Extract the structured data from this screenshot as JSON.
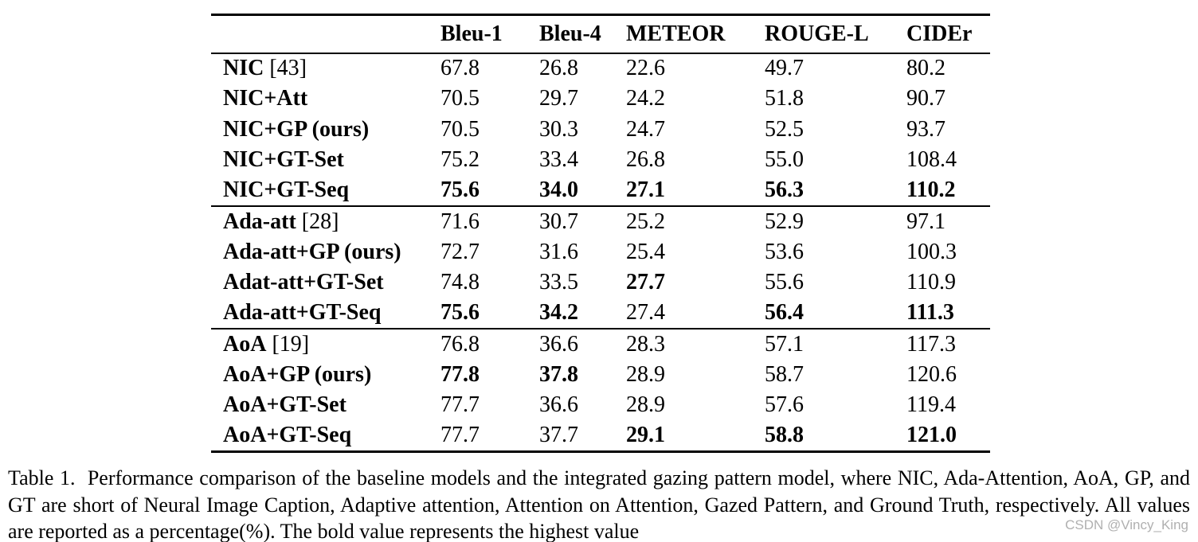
{
  "colors": {
    "text": "#000000",
    "background": "#ffffff",
    "watermark_gray": "#b0b0b0",
    "rule": "#000000"
  },
  "table": {
    "columns": [
      "",
      "Bleu-1",
      "Bleu-4",
      "METEOR",
      "ROUGE-L",
      "CIDEr"
    ],
    "groups": [
      {
        "rows": [
          {
            "label": "NIC",
            "ref": "[43]",
            "values": [
              {
                "text": "67.8",
                "bold": false
              },
              {
                "text": "26.8",
                "bold": false
              },
              {
                "text": "22.6",
                "bold": false
              },
              {
                "text": "49.7",
                "bold": false
              },
              {
                "text": "80.2",
                "bold": false
              }
            ]
          },
          {
            "label": "NIC+Att",
            "ref": "",
            "values": [
              {
                "text": "70.5",
                "bold": false
              },
              {
                "text": "29.7",
                "bold": false
              },
              {
                "text": "24.2",
                "bold": false
              },
              {
                "text": "51.8",
                "bold": false
              },
              {
                "text": "90.7",
                "bold": false
              }
            ]
          },
          {
            "label": "NIC+GP (ours)",
            "ref": "",
            "values": [
              {
                "text": "70.5",
                "bold": false
              },
              {
                "text": "30.3",
                "bold": false
              },
              {
                "text": "24.7",
                "bold": false
              },
              {
                "text": "52.5",
                "bold": false
              },
              {
                "text": "93.7",
                "bold": false
              }
            ]
          },
          {
            "label": "NIC+GT-Set",
            "ref": "",
            "values": [
              {
                "text": "75.2",
                "bold": false
              },
              {
                "text": "33.4",
                "bold": false
              },
              {
                "text": "26.8",
                "bold": false
              },
              {
                "text": "55.0",
                "bold": false
              },
              {
                "text": "108.4",
                "bold": false
              }
            ]
          },
          {
            "label": "NIC+GT-Seq",
            "ref": "",
            "values": [
              {
                "text": "75.6",
                "bold": true
              },
              {
                "text": "34.0",
                "bold": true
              },
              {
                "text": "27.1",
                "bold": true
              },
              {
                "text": "56.3",
                "bold": true
              },
              {
                "text": "110.2",
                "bold": true
              }
            ]
          }
        ]
      },
      {
        "rows": [
          {
            "label": "Ada-att",
            "ref": "[28]",
            "values": [
              {
                "text": "71.6",
                "bold": false
              },
              {
                "text": "30.7",
                "bold": false
              },
              {
                "text": "25.2",
                "bold": false
              },
              {
                "text": "52.9",
                "bold": false
              },
              {
                "text": "97.1",
                "bold": false
              }
            ]
          },
          {
            "label": "Ada-att+GP (ours)",
            "ref": "",
            "values": [
              {
                "text": "72.7",
                "bold": false
              },
              {
                "text": "31.6",
                "bold": false
              },
              {
                "text": "25.4",
                "bold": false
              },
              {
                "text": "53.6",
                "bold": false
              },
              {
                "text": "100.3",
                "bold": false
              }
            ]
          },
          {
            "label": "Adat-att+GT-Set",
            "ref": "",
            "values": [
              {
                "text": "74.8",
                "bold": false
              },
              {
                "text": "33.5",
                "bold": false
              },
              {
                "text": "27.7",
                "bold": true
              },
              {
                "text": "55.6",
                "bold": false
              },
              {
                "text": "110.9",
                "bold": false
              }
            ]
          },
          {
            "label": "Ada-att+GT-Seq",
            "ref": "",
            "values": [
              {
                "text": "75.6",
                "bold": true
              },
              {
                "text": "34.2",
                "bold": true
              },
              {
                "text": "27.4",
                "bold": false
              },
              {
                "text": "56.4",
                "bold": true
              },
              {
                "text": "111.3",
                "bold": true
              }
            ]
          }
        ]
      },
      {
        "rows": [
          {
            "label": "AoA",
            "ref": "[19]",
            "values": [
              {
                "text": "76.8",
                "bold": false
              },
              {
                "text": "36.6",
                "bold": false
              },
              {
                "text": "28.3",
                "bold": false
              },
              {
                "text": "57.1",
                "bold": false
              },
              {
                "text": "117.3",
                "bold": false
              }
            ]
          },
          {
            "label": "AoA+GP (ours)",
            "ref": "",
            "values": [
              {
                "text": "77.8",
                "bold": true
              },
              {
                "text": "37.8",
                "bold": true
              },
              {
                "text": "28.9",
                "bold": false
              },
              {
                "text": "58.7",
                "bold": false
              },
              {
                "text": "120.6",
                "bold": false
              }
            ]
          },
          {
            "label": "AoA+GT-Set",
            "ref": "",
            "values": [
              {
                "text": "77.7",
                "bold": false
              },
              {
                "text": "36.6",
                "bold": false
              },
              {
                "text": "28.9",
                "bold": false
              },
              {
                "text": "57.6",
                "bold": false
              },
              {
                "text": "119.4",
                "bold": false
              }
            ]
          },
          {
            "label": "AoA+GT-Seq",
            "ref": "",
            "values": [
              {
                "text": "77.7",
                "bold": false
              },
              {
                "text": "37.7",
                "bold": false
              },
              {
                "text": "29.1",
                "bold": true
              },
              {
                "text": "58.8",
                "bold": true
              },
              {
                "text": "121.0",
                "bold": true
              }
            ]
          }
        ]
      }
    ]
  },
  "caption": {
    "text": "Table 1.  Performance comparison of the baseline models and the integrated gazing pattern model, where NIC, Ada-Attention, AoA, GP, and GT are short of Neural Image Caption, Adaptive attention, Attention on Attention, Gazed Pattern, and Ground Truth, respectively. All values are reported as a percentage(%). The bold value represents the highest value"
  },
  "watermark": {
    "text": "CSDN @Vincy_King"
  }
}
